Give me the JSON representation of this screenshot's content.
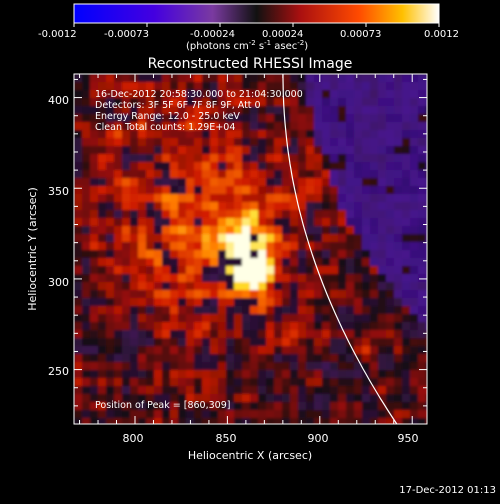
{
  "colorbar": {
    "tick_labels": [
      "-0.0012",
      "-0.00073",
      "-0.00024",
      "0.00024",
      "0.00073",
      "0.0012"
    ],
    "unit_main": "(photons cm",
    "unit_sup1": "-2",
    "unit_mid": " s",
    "unit_sup2": "-1",
    "unit_mid2": " asec",
    "unit_sup3": "-2",
    "unit_end": ")"
  },
  "image": {
    "title": "Reconstructed RHESSI Image",
    "info_lines": [
      "16-Dec-2012 20:58:30.000 to 21:04:30.000",
      "Detectors: 3F 5F 6F 7F 8F 9F, Att 0",
      "Energy Range: 12.0 - 25.0 keV",
      "Clean     Total counts: 1.29E+04"
    ],
    "peak_label": "Position of Peak = [860,309]",
    "peak": [
      860,
      309
    ],
    "x_axis": {
      "label": "Heliocentric X (arcsec)",
      "ticks": [
        "800",
        "850",
        "900",
        "950"
      ],
      "range": [
        767,
        958
      ]
    },
    "y_axis": {
      "label": "Heliocentric Y (arcsec)",
      "ticks": [
        "250",
        "300",
        "350",
        "400"
      ],
      "range": [
        220,
        413
      ]
    },
    "limb_color": "#ffffff"
  },
  "footer": {
    "timestamp": "17-Dec-2012 01:13"
  }
}
